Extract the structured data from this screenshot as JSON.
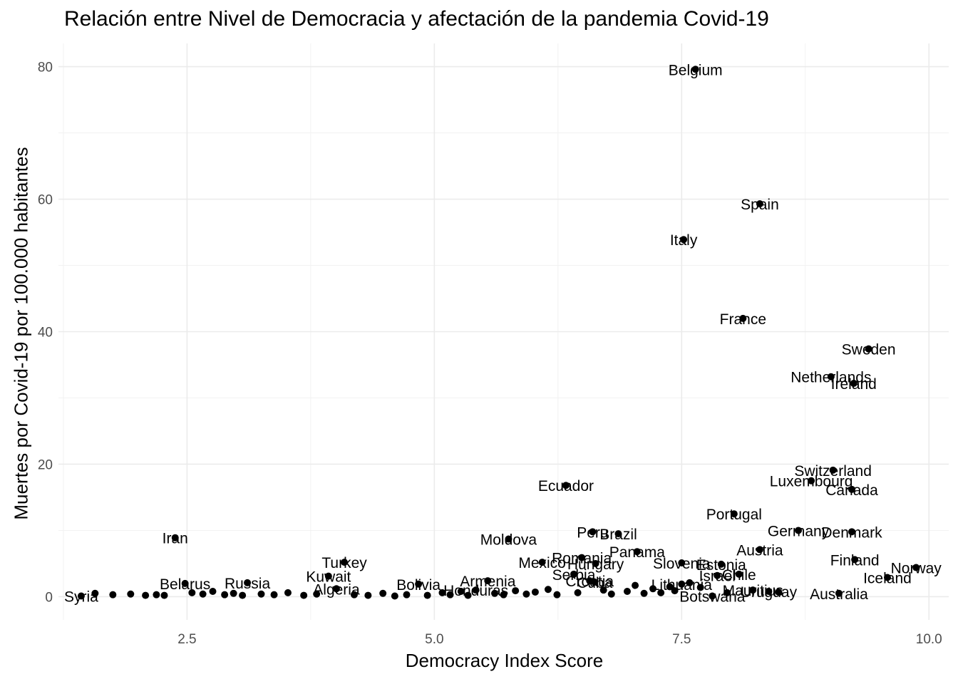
{
  "chart_data": {
    "type": "scatter",
    "title": "Relación entre Nivel de Democracia y afectación de la pandemia Covid-19",
    "xlabel": "Democracy Index Score",
    "ylabel": "Muertes por Covid-19 por 100.000 habitantes",
    "xlim": [
      1.2,
      10.2
    ],
    "ylim": [
      -3.5,
      83.5
    ],
    "x_ticks": [
      2.5,
      5.0,
      7.5,
      10.0
    ],
    "x_tick_labels": [
      "2.5",
      "5.0",
      "7.5",
      "10.0"
    ],
    "y_ticks": [
      0,
      20,
      40,
      60,
      80
    ],
    "y_tick_labels": [
      "0",
      "20",
      "40",
      "60",
      "80"
    ],
    "grid": true,
    "point_color": "#000000",
    "points": [
      {
        "label": "Belgium",
        "x": 7.64,
        "y": 79.6
      },
      {
        "label": "Spain",
        "x": 8.29,
        "y": 59.3
      },
      {
        "label": "Italy",
        "x": 7.52,
        "y": 53.9
      },
      {
        "label": "France",
        "x": 8.12,
        "y": 42.0
      },
      {
        "label": "Sweden",
        "x": 9.39,
        "y": 37.4
      },
      {
        "label": "Netherlands",
        "x": 9.01,
        "y": 33.2
      },
      {
        "label": "Ireland",
        "x": 9.24,
        "y": 32.2
      },
      {
        "label": "Switzerland",
        "x": 9.03,
        "y": 19.1
      },
      {
        "label": "Luxembourg",
        "x": 8.81,
        "y": 17.5
      },
      {
        "label": "Canada",
        "x": 9.22,
        "y": 16.2
      },
      {
        "label": "Ecuador",
        "x": 6.33,
        "y": 16.8
      },
      {
        "label": "Portugal",
        "x": 8.03,
        "y": 12.5
      },
      {
        "label": "Germany",
        "x": 8.68,
        "y": 10.0
      },
      {
        "label": "Denmark",
        "x": 9.22,
        "y": 9.8
      },
      {
        "label": "Peru",
        "x": 6.6,
        "y": 9.8
      },
      {
        "label": "Brazil",
        "x": 6.86,
        "y": 9.5
      },
      {
        "label": "Iran",
        "x": 2.38,
        "y": 8.9
      },
      {
        "label": "Moldova",
        "x": 5.75,
        "y": 8.7
      },
      {
        "label": "Austria",
        "x": 8.29,
        "y": 7.1
      },
      {
        "label": "Panama",
        "x": 7.05,
        "y": 6.8
      },
      {
        "label": "Romania",
        "x": 6.49,
        "y": 5.9
      },
      {
        "label": "Finland",
        "x": 9.25,
        "y": 5.6
      },
      {
        "label": "Mexico",
        "x": 6.09,
        "y": 5.2
      },
      {
        "label": "Hungary",
        "x": 6.63,
        "y": 5.0
      },
      {
        "label": "Slovenia",
        "x": 7.5,
        "y": 5.1
      },
      {
        "label": "Estonia",
        "x": 7.9,
        "y": 4.9
      },
      {
        "label": "Turkey",
        "x": 4.09,
        "y": 5.2
      },
      {
        "label": "Norway",
        "x": 9.87,
        "y": 4.4
      },
      {
        "label": "Israel",
        "x": 7.86,
        "y": 3.2
      },
      {
        "label": "Chile",
        "x": 8.08,
        "y": 3.4
      },
      {
        "label": "Serbia",
        "x": 6.41,
        "y": 3.4
      },
      {
        "label": "Kuwait",
        "x": 3.93,
        "y": 3.1
      },
      {
        "label": "Iceland",
        "x": 9.58,
        "y": 2.9
      },
      {
        "label": "Armenia",
        "x": 5.54,
        "y": 2.4
      },
      {
        "label": "Croatia",
        "x": 6.57,
        "y": 2.4
      },
      {
        "label": "Cuba",
        "x": 6.62,
        "y": 2.2
      },
      {
        "label": "Russia",
        "x": 3.11,
        "y": 2.1
      },
      {
        "label": "Belarus",
        "x": 2.48,
        "y": 2.0
      },
      {
        "label": "Bolivia",
        "x": 4.84,
        "y": 1.9
      },
      {
        "label": "Lithuania",
        "x": 7.5,
        "y": 1.9
      },
      {
        "label": "Algeria",
        "x": 4.01,
        "y": 1.2
      },
      {
        "label": "Honduras",
        "x": 5.42,
        "y": 1.0
      },
      {
        "label": "Uruguay",
        "x": 8.38,
        "y": 0.8
      },
      {
        "label": "Mauritius",
        "x": 8.22,
        "y": 1.0
      },
      {
        "label": "Australia",
        "x": 9.09,
        "y": 0.5
      },
      {
        "label": "Botswana",
        "x": 7.81,
        "y": 0.1
      },
      {
        "label": "Syria",
        "x": 1.43,
        "y": 0.1
      }
    ],
    "unlabeled_points": [
      {
        "x": 1.57,
        "y": 0.5
      },
      {
        "x": 1.75,
        "y": 0.3
      },
      {
        "x": 1.93,
        "y": 0.4
      },
      {
        "x": 2.08,
        "y": 0.2
      },
      {
        "x": 2.19,
        "y": 0.3
      },
      {
        "x": 2.27,
        "y": 0.2
      },
      {
        "x": 2.55,
        "y": 0.6
      },
      {
        "x": 2.66,
        "y": 0.4
      },
      {
        "x": 2.76,
        "y": 0.8
      },
      {
        "x": 2.88,
        "y": 0.3
      },
      {
        "x": 2.97,
        "y": 0.5
      },
      {
        "x": 3.06,
        "y": 0.2
      },
      {
        "x": 3.25,
        "y": 0.4
      },
      {
        "x": 3.38,
        "y": 0.3
      },
      {
        "x": 3.52,
        "y": 0.6
      },
      {
        "x": 3.68,
        "y": 0.2
      },
      {
        "x": 3.81,
        "y": 0.4
      },
      {
        "x": 4.19,
        "y": 0.3
      },
      {
        "x": 4.33,
        "y": 0.2
      },
      {
        "x": 4.48,
        "y": 0.5
      },
      {
        "x": 4.6,
        "y": 0.1
      },
      {
        "x": 4.72,
        "y": 0.3
      },
      {
        "x": 4.93,
        "y": 0.2
      },
      {
        "x": 5.08,
        "y": 0.6
      },
      {
        "x": 5.16,
        "y": 0.3
      },
      {
        "x": 5.27,
        "y": 0.8
      },
      {
        "x": 5.34,
        "y": 0.2
      },
      {
        "x": 5.61,
        "y": 0.5
      },
      {
        "x": 5.7,
        "y": 0.3
      },
      {
        "x": 5.82,
        "y": 0.9
      },
      {
        "x": 5.93,
        "y": 0.4
      },
      {
        "x": 6.02,
        "y": 0.7
      },
      {
        "x": 6.15,
        "y": 1.1
      },
      {
        "x": 6.24,
        "y": 0.3
      },
      {
        "x": 6.45,
        "y": 0.6
      },
      {
        "x": 6.71,
        "y": 1.0
      },
      {
        "x": 6.79,
        "y": 0.4
      },
      {
        "x": 6.95,
        "y": 0.8
      },
      {
        "x": 7.03,
        "y": 1.7
      },
      {
        "x": 7.12,
        "y": 0.5
      },
      {
        "x": 7.21,
        "y": 1.2
      },
      {
        "x": 7.29,
        "y": 0.6
      },
      {
        "x": 7.38,
        "y": 1.5
      },
      {
        "x": 7.43,
        "y": 0.9
      },
      {
        "x": 7.58,
        "y": 2.1
      },
      {
        "x": 7.69,
        "y": 1.4
      },
      {
        "x": 7.96,
        "y": 0.6
      },
      {
        "x": 8.48,
        "y": 0.7
      }
    ]
  }
}
